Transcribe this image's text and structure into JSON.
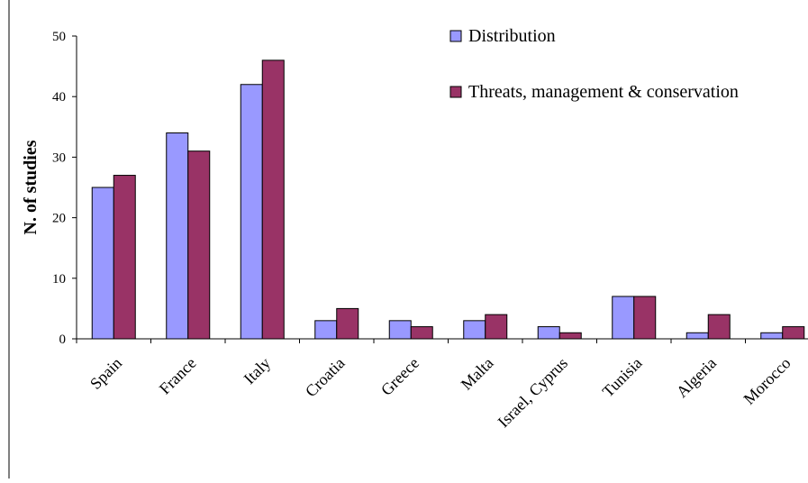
{
  "chart_data": {
    "type": "bar",
    "ylabel": "N. of studies",
    "xlabel": "",
    "ylim": [
      0,
      50
    ],
    "yticks": [
      0,
      10,
      20,
      30,
      40,
      50
    ],
    "grid": false,
    "legend_position": "top-right",
    "categories": [
      "Spain",
      "France",
      "Italy",
      "Croatia",
      "Greece",
      "Malta",
      "Israel, Cyprus",
      "Tunisia",
      "Algeria",
      "Morocco"
    ],
    "series": [
      {
        "name": "Distribution",
        "color": "#9999ff",
        "values": [
          25,
          34,
          42,
          3,
          3,
          3,
          2,
          7,
          1,
          1
        ]
      },
      {
        "name": "Threats, management & conservation",
        "color": "#993366",
        "values": [
          27,
          31,
          46,
          5,
          2,
          4,
          1,
          7,
          4,
          2
        ]
      }
    ]
  }
}
